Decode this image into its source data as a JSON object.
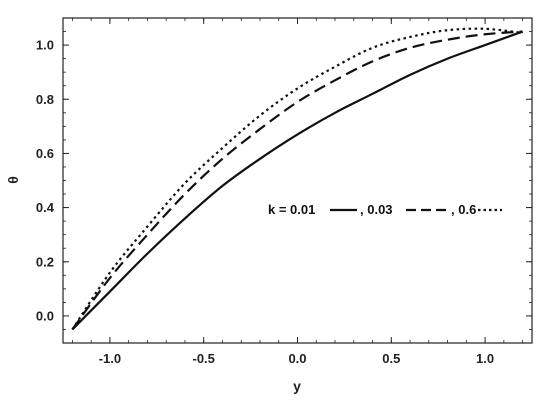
{
  "chart_data": {
    "type": "line",
    "title": "",
    "xlabel": "y",
    "ylabel": "θ",
    "xlim": [
      -1.25,
      1.25
    ],
    "ylim": [
      -0.1,
      1.1
    ],
    "xticks": [
      -1.0,
      -0.5,
      0.0,
      0.5,
      1.0
    ],
    "xtick_labels": [
      "-1.0",
      "-0.5",
      "0.0",
      "0.5",
      "1.0"
    ],
    "yticks": [
      0.0,
      0.2,
      0.4,
      0.6,
      0.8,
      1.0
    ],
    "ytick_labels": [
      "0.0",
      "0.2",
      "0.4",
      "0.6",
      "0.8",
      "1.0"
    ],
    "grid": false,
    "legend_text": {
      "prefix": "k = 0.01",
      "sep1": ", 0.03",
      "sep2": ", 0.6"
    },
    "series": [
      {
        "style": "solid",
        "x": [
          -1.2,
          -1.0,
          -0.8,
          -0.6,
          -0.4,
          -0.2,
          0.0,
          0.2,
          0.4,
          0.6,
          0.8,
          1.0,
          1.2
        ],
        "y": [
          -0.05,
          0.09,
          0.23,
          0.36,
          0.48,
          0.58,
          0.67,
          0.75,
          0.82,
          0.89,
          0.95,
          1.0,
          1.05
        ]
      },
      {
        "style": "dashed",
        "x": [
          -1.2,
          -1.0,
          -0.8,
          -0.6,
          -0.4,
          -0.2,
          0.0,
          0.2,
          0.4,
          0.6,
          0.8,
          1.0,
          1.2
        ],
        "y": [
          -0.05,
          0.14,
          0.3,
          0.45,
          0.58,
          0.69,
          0.79,
          0.87,
          0.94,
          0.99,
          1.02,
          1.04,
          1.05
        ]
      },
      {
        "style": "dotted",
        "x": [
          -1.2,
          -1.0,
          -0.8,
          -0.6,
          -0.4,
          -0.2,
          0.0,
          0.2,
          0.4,
          0.6,
          0.8,
          1.0,
          1.2
        ],
        "y": [
          -0.05,
          0.16,
          0.33,
          0.49,
          0.62,
          0.74,
          0.84,
          0.92,
          0.99,
          1.03,
          1.055,
          1.06,
          1.045
        ]
      }
    ]
  }
}
